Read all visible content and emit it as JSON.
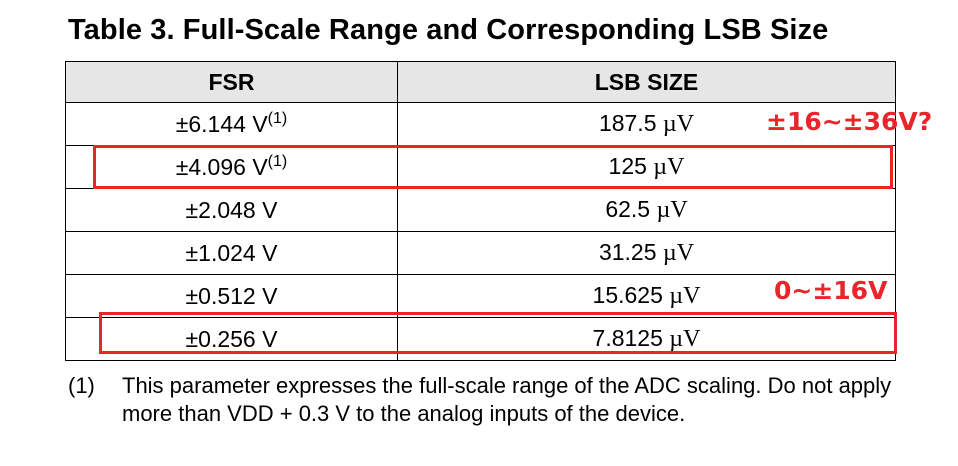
{
  "title": "Table 3. Full-Scale Range and Corresponding LSB Size",
  "table": {
    "headers": [
      "FSR",
      "LSB SIZE"
    ],
    "rows": [
      {
        "fsr": "±6.144 V",
        "note": "(1)",
        "lsb_value": "187.5",
        "lsb_unit": "µV"
      },
      {
        "fsr": "±4.096 V",
        "note": "(1)",
        "lsb_value": "125",
        "lsb_unit": "µV"
      },
      {
        "fsr": "±2.048 V",
        "note": "",
        "lsb_value": "62.5",
        "lsb_unit": "µV"
      },
      {
        "fsr": "±1.024 V",
        "note": "",
        "lsb_value": "31.25",
        "lsb_unit": "µV"
      },
      {
        "fsr": "±0.512 V",
        "note": "",
        "lsb_value": "15.625",
        "lsb_unit": "µV"
      },
      {
        "fsr": "±0.256 V",
        "note": "",
        "lsb_value": "7.8125",
        "lsb_unit": "µV"
      }
    ]
  },
  "annotations": {
    "note_top": "±16~±36V?",
    "note_bottom": "0~±16V",
    "color": "#e8252b"
  },
  "footnote": {
    "number": "(1)",
    "text": "This parameter expresses the full-scale range of the ADC scaling. Do not apply more than VDD + 0.3 V to the analog inputs of the device."
  }
}
